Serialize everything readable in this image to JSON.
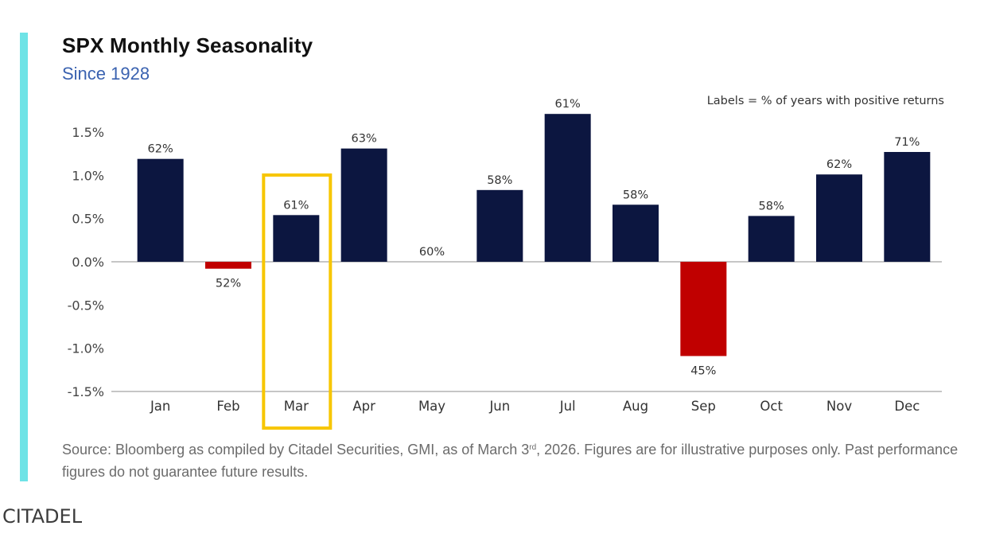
{
  "colors": {
    "accent_bar": "#6ee3e6",
    "positive_bar": "#0c1640",
    "negative_bar": "#c00000",
    "highlight_box": "#f7c600",
    "subtitle": "#3a62b0"
  },
  "source": {
    "prefix": "Source: Bloomberg as compiled by Citadel Securities, GMI, as of March 3",
    "superscript": "rd",
    "suffix": ", 2026. Figures are for illustrative purposes only. Past performance figures do not guarantee future results."
  },
  "brand": "CITADEL",
  "chart_data": {
    "type": "bar",
    "title": "SPX Monthly Seasonality",
    "subtitle": "Since 1928",
    "annotation": "Labels = % of years with positive returns",
    "xlabel": "",
    "ylabel": "",
    "ylim": [
      -1.5,
      1.5
    ],
    "yticks": [
      1.5,
      1.0,
      0.5,
      0.0,
      -0.5,
      -1.0,
      -1.5
    ],
    "ytick_labels": [
      "1.5%",
      "1.0%",
      "0.5%",
      "0.0%",
      "-0.5%",
      "-1.0%",
      "-1.5%"
    ],
    "grid": false,
    "categories": [
      "Jan",
      "Feb",
      "Mar",
      "Apr",
      "May",
      "Jun",
      "Jul",
      "Aug",
      "Sep",
      "Oct",
      "Nov",
      "Dec"
    ],
    "values": [
      1.19,
      -0.08,
      0.54,
      1.31,
      0.0,
      0.83,
      1.71,
      0.66,
      -1.09,
      0.53,
      1.01,
      1.27
    ],
    "value_unit": "% average monthly return",
    "data_labels": [
      "62%",
      "52%",
      "61%",
      "63%",
      "60%",
      "58%",
      "61%",
      "58%",
      "45%",
      "58%",
      "62%",
      "71%"
    ],
    "highlighted_category": "Mar"
  }
}
